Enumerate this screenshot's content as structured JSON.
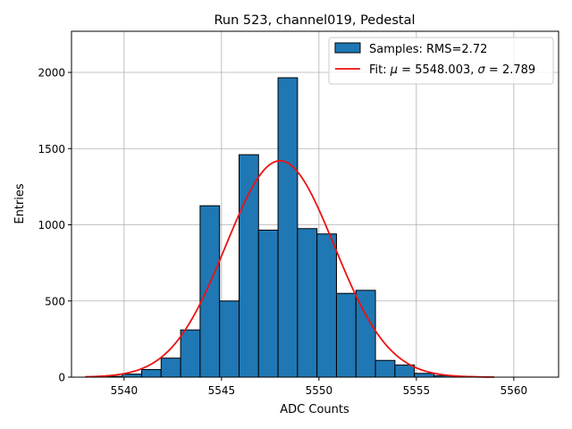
{
  "chart_data": {
    "type": "bar",
    "title": "Run 523, channel019, Pedestal",
    "xlabel": "ADC Counts",
    "ylabel": "Entries",
    "xlim": [
      5537.3,
      5562.3
    ],
    "ylim": [
      0,
      2270
    ],
    "x_ticks": [
      5540,
      5545,
      5550,
      5555,
      5560
    ],
    "y_ticks": [
      0,
      500,
      1000,
      1500,
      2000
    ],
    "grid": true,
    "legend_position": "top-right",
    "bar_color": "#1f77b4",
    "fit_color": "#ee1111",
    "histogram": {
      "name": "Samples: RMS=2.72",
      "bin_edges": [
        5538.9,
        5539.9,
        5540.9,
        5541.9,
        5542.9,
        5543.9,
        5544.9,
        5545.9,
        5546.9,
        5547.9,
        5548.9,
        5549.9,
        5550.9,
        5551.9,
        5552.9,
        5553.9,
        5554.9,
        5555.9,
        5556.9,
        5557.9,
        5558.9
      ],
      "values": [
        5,
        20,
        50,
        125,
        310,
        1125,
        500,
        1460,
        965,
        1965,
        975,
        940,
        550,
        570,
        110,
        80,
        25,
        10,
        5,
        2
      ]
    },
    "fit": {
      "legend_prefix": "Fit: ",
      "mu_symbol": "μ",
      "mu_value": "5548.003",
      "sigma_symbol": "σ",
      "sigma_value": "2.789",
      "mu": 5548.003,
      "sigma": 2.789,
      "peak": 1420,
      "x_range": [
        5538.0,
        5559.0
      ]
    }
  }
}
